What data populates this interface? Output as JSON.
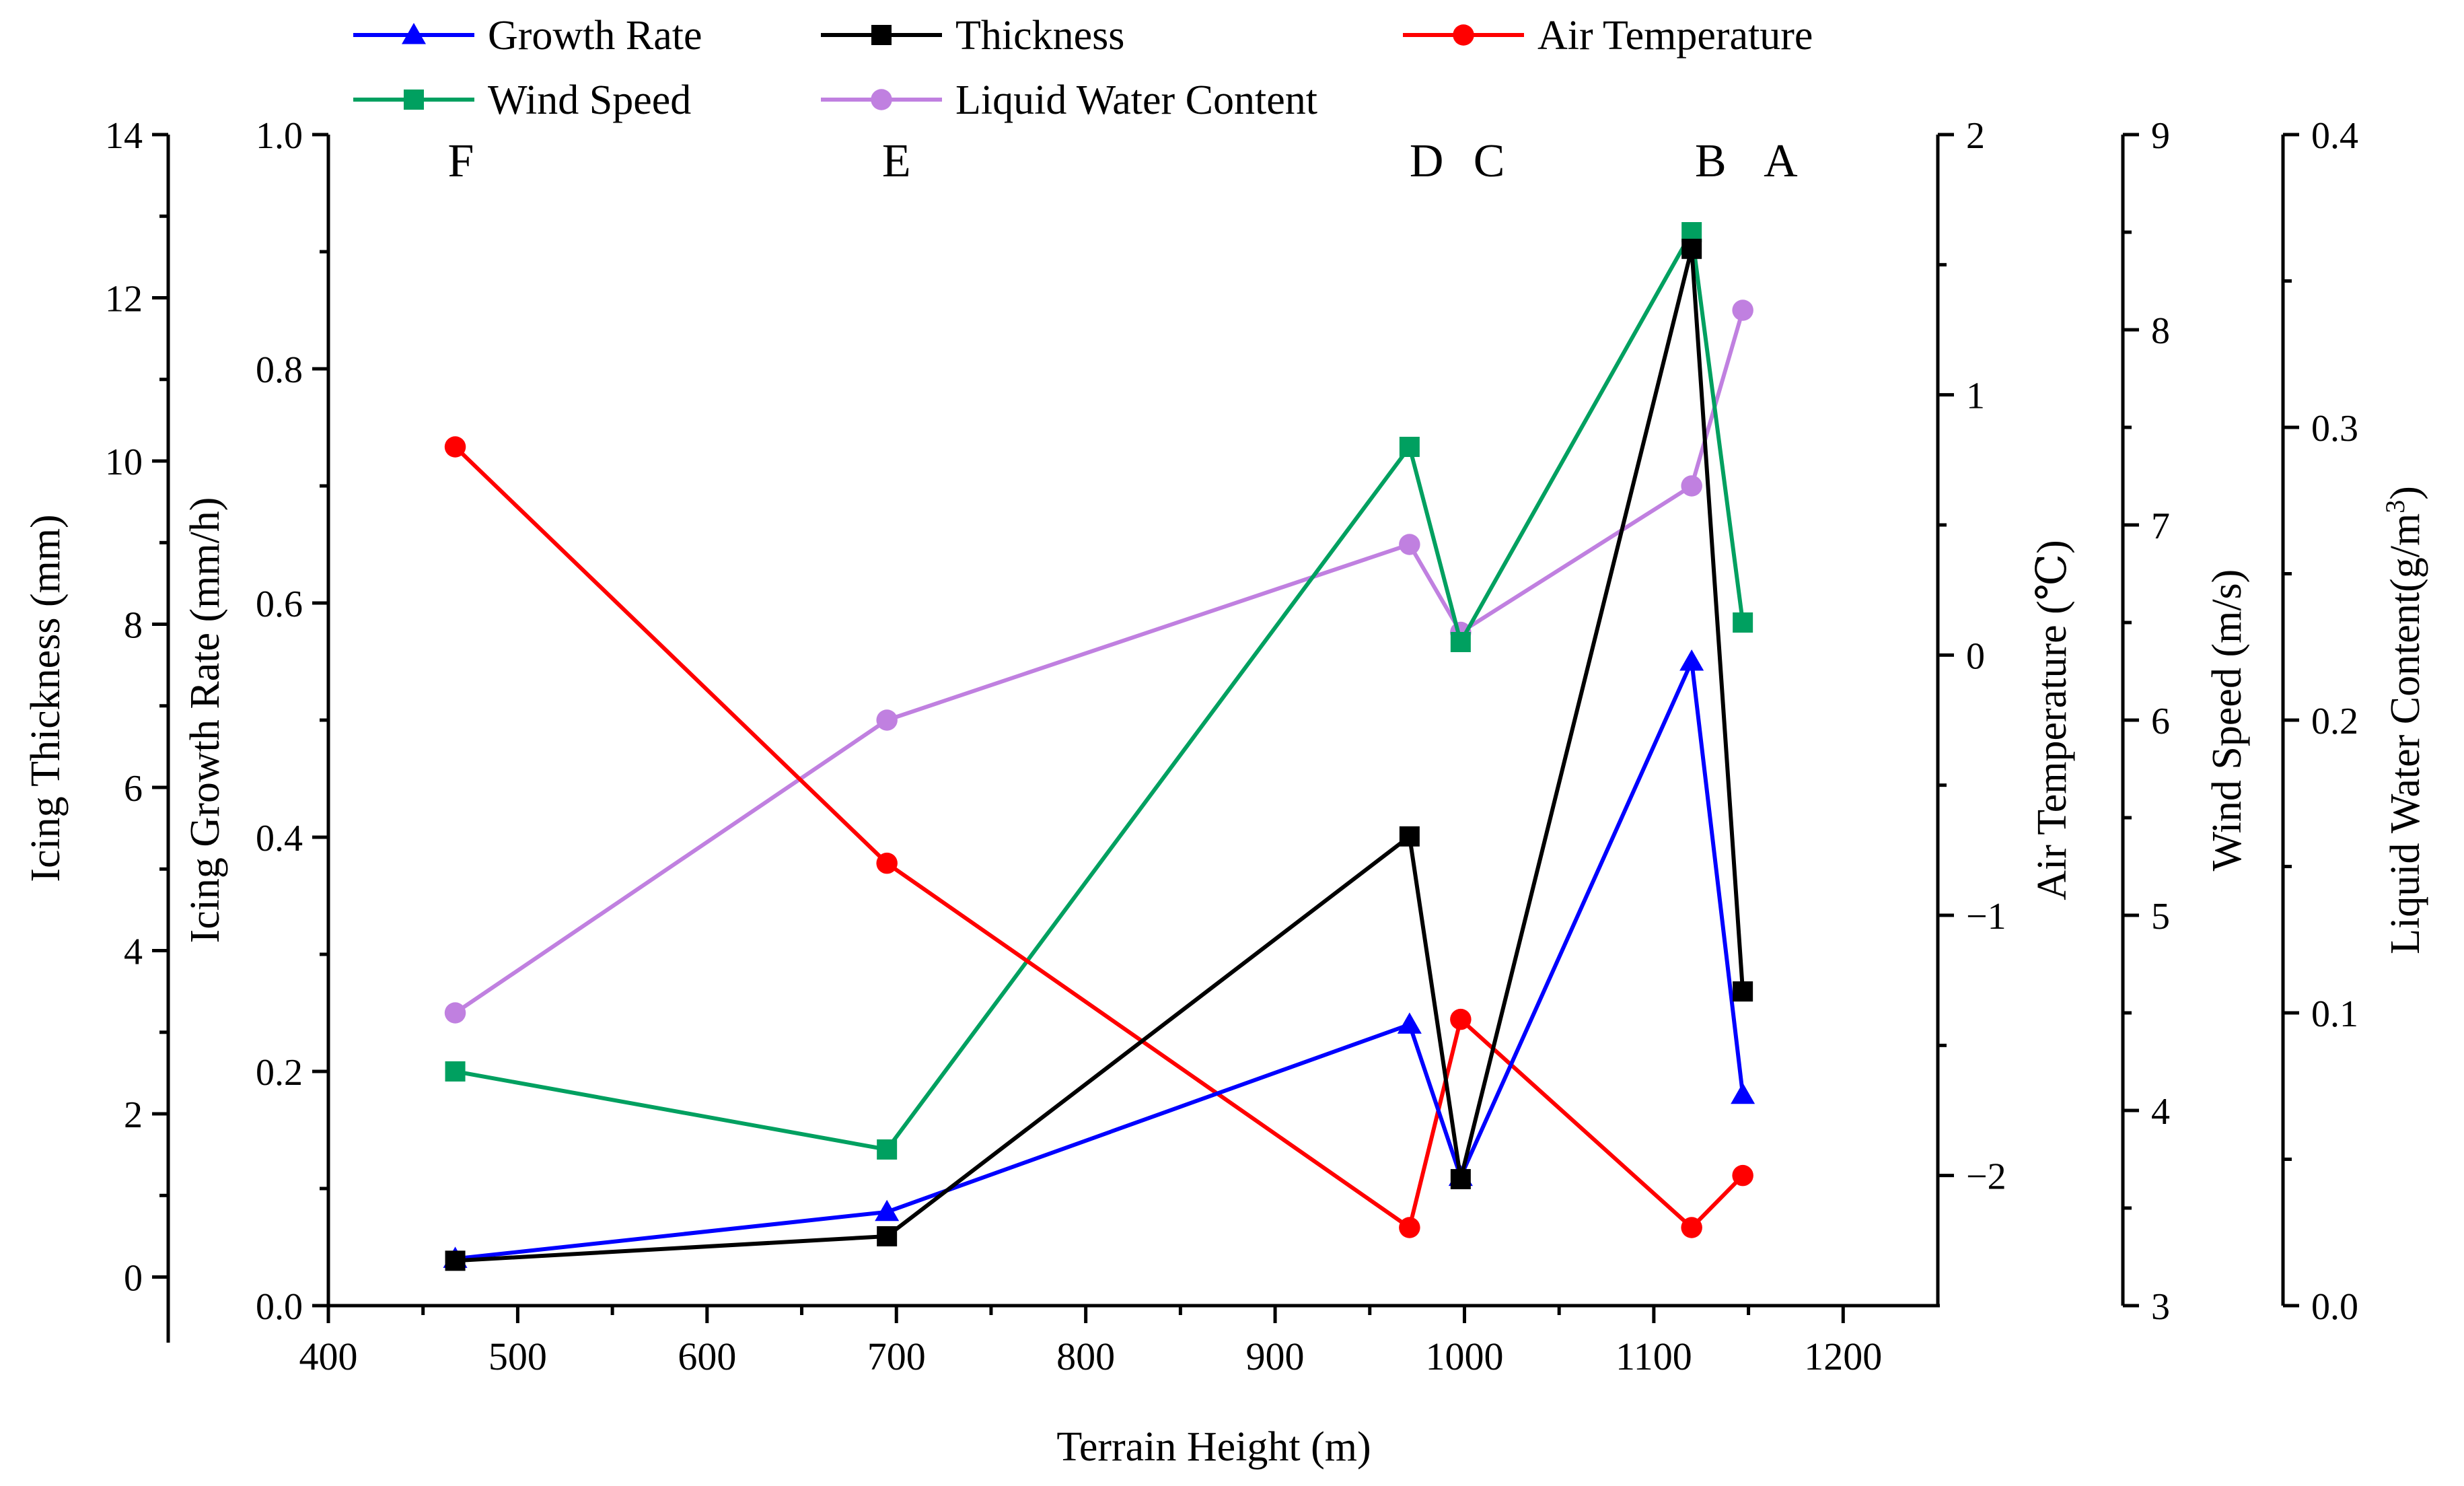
{
  "chart_data": {
    "type": "line",
    "xlabel": "Terrain Height (m)",
    "xlim": [
      400,
      1250
    ],
    "x_ticks": [
      "400",
      "500",
      "600",
      "700",
      "800",
      "900",
      "1000",
      "1100",
      "1200"
    ],
    "x": [
      467,
      695,
      971,
      998,
      1120,
      1147
    ],
    "point_labels": [
      {
        "text": "F",
        "x": 470
      },
      {
        "text": "E",
        "x": 700
      },
      {
        "text": "D",
        "x": 980
      },
      {
        "text": "C",
        "x": 1013
      },
      {
        "text": "B",
        "x": 1130
      },
      {
        "text": "A",
        "x": 1167
      }
    ],
    "axes": [
      {
        "id": "thickness",
        "label": "Icing  Thickness (mm)",
        "range": [
          -0.35,
          14
        ],
        "ticks": [
          "0",
          "2",
          "4",
          "6",
          "8",
          "10",
          "12",
          "14"
        ]
      },
      {
        "id": "growth",
        "label": "Icing Growth Rate (mm/h)",
        "range": [
          0,
          1
        ],
        "ticks": [
          "0.0",
          "0.2",
          "0.4",
          "0.6",
          "0.8",
          "1.0"
        ]
      },
      {
        "id": "temperature",
        "label": "Air Temperature (℃)",
        "range": [
          -2.5,
          2
        ],
        "ticks": [
          "−2",
          "−1",
          "0",
          "1",
          "2"
        ]
      },
      {
        "id": "wind",
        "label": "Wind Speed (m/s)",
        "range": [
          3,
          9
        ],
        "ticks": [
          "3",
          "4",
          "5",
          "6",
          "7",
          "8",
          "9"
        ]
      },
      {
        "id": "lwc",
        "label": "Liquid Water Content(g/m",
        "label_sup": "3",
        "label_end": ")",
        "range": [
          0,
          0.4
        ],
        "ticks": [
          "0.0",
          "0.1",
          "0.2",
          "0.3",
          "0.4"
        ]
      }
    ],
    "series": [
      {
        "name": "Growth Rate",
        "axis": "growth",
        "color": "#0000ff",
        "marker": "triangle",
        "values": [
          0.04,
          0.08,
          0.24,
          0.11,
          0.55,
          0.18
        ]
      },
      {
        "name": "Thickness",
        "axis": "thickness",
        "color": "#000000",
        "marker": "square",
        "values": [
          0.2,
          0.5,
          5.4,
          1.2,
          12.6,
          3.5
        ]
      },
      {
        "name": "Air Temperature",
        "axis": "temperature",
        "color": "#ff0000",
        "marker": "circle",
        "values": [
          0.8,
          -0.8,
          -2.2,
          -1.4,
          -2.2,
          -2.0
        ]
      },
      {
        "name": "Wind Speed",
        "axis": "wind",
        "color": "#00a060",
        "marker": "square",
        "values": [
          4.2,
          3.8,
          7.4,
          6.4,
          8.5,
          6.5
        ]
      },
      {
        "name": "Liquid Water Content",
        "axis": "lwc",
        "color": "#c080e0",
        "marker": "circle",
        "values": [
          0.1,
          0.2,
          0.26,
          0.23,
          0.28,
          0.34
        ]
      }
    ]
  }
}
